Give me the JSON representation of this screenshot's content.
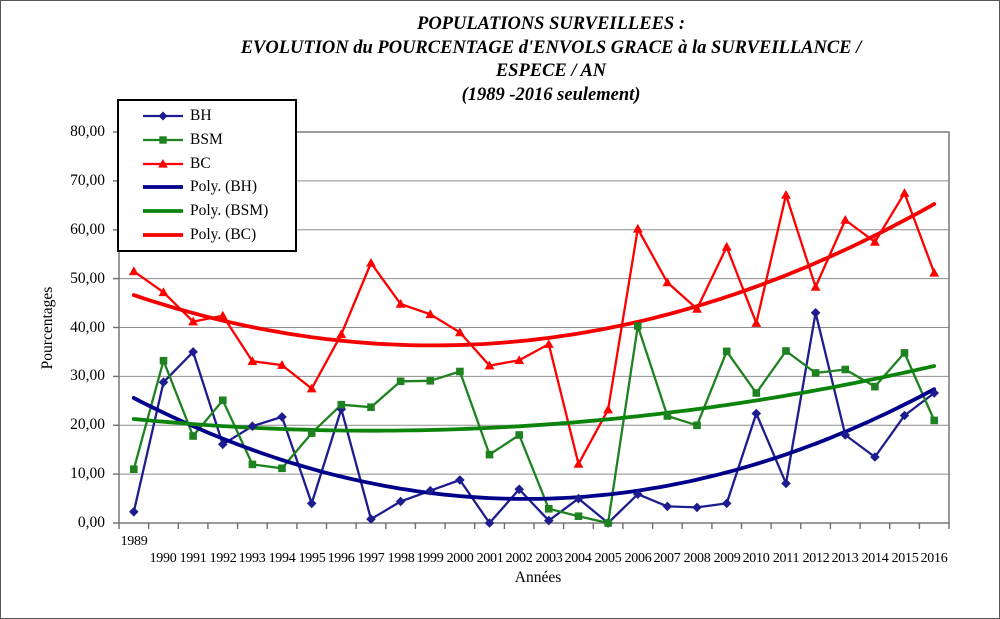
{
  "title": {
    "line1": "POPULATIONS SURVEILLEES :",
    "line2": "EVOLUTION du POURCENTAGE d'ENVOLS GRACE à la SURVEILLANCE /",
    "line3": "ESPECE / AN",
    "line4": "(1989 -2016 seulement)"
  },
  "axes": {
    "y_label": "Pourcentages",
    "x_label": "Années",
    "y_tick_labels": [
      "0,00",
      "10,00",
      "20,00",
      "30,00",
      "40,00",
      "50,00",
      "60,00",
      "70,00",
      "80,00"
    ],
    "x_tick_labels": [
      "1989",
      "1990",
      "1991",
      "1992",
      "1993",
      "1994",
      "1995",
      "1996",
      "1997",
      "1998",
      "1999",
      "2000",
      "2001",
      "2002",
      "2003",
      "2004",
      "2005",
      "2006",
      "2007",
      "2008",
      "2009",
      "2010",
      "2011",
      "2012",
      "2013",
      "2014",
      "2015",
      "2016"
    ]
  },
  "legend": {
    "items": [
      {
        "label": "BH",
        "kind": "data",
        "marker": "diamond",
        "color": "#1d1d8f"
      },
      {
        "label": "BSM",
        "kind": "data",
        "marker": "square",
        "color": "#1f8220"
      },
      {
        "label": "BC",
        "kind": "data",
        "marker": "triangle",
        "color": "#fe0000"
      },
      {
        "label": "Poly. (BH)",
        "kind": "trend",
        "marker": "none",
        "color": "#00008b"
      },
      {
        "label": "Poly. (BSM)",
        "kind": "trend",
        "marker": "none",
        "color": "#0c840c"
      },
      {
        "label": "Poly. (BC)",
        "kind": "trend",
        "marker": "none",
        "color": "#f40000"
      }
    ]
  },
  "chart_data": {
    "type": "line",
    "x": [
      1989,
      1990,
      1991,
      1992,
      1993,
      1994,
      1995,
      1996,
      1997,
      1998,
      1999,
      2000,
      2001,
      2002,
      2003,
      2004,
      2005,
      2006,
      2007,
      2008,
      2009,
      2010,
      2011,
      2012,
      2013,
      2014,
      2015,
      2016
    ],
    "series": [
      {
        "name": "BH",
        "color": "#1d1d8f",
        "marker": "diamond",
        "values": [
          2.3,
          28.8,
          35.0,
          16.1,
          19.8,
          21.7,
          4.0,
          23.3,
          0.8,
          4.4,
          6.6,
          8.8,
          0.0,
          6.9,
          0.5,
          5.0,
          0.0,
          5.9,
          3.4,
          3.2,
          4.0,
          22.4,
          8.1,
          43.0,
          18.0,
          13.5,
          22.0,
          26.6
        ]
      },
      {
        "name": "BSM",
        "color": "#1f8220",
        "marker": "square",
        "values": [
          11.0,
          33.2,
          17.8,
          25.1,
          12.0,
          11.2,
          18.4,
          24.2,
          23.7,
          29.0,
          29.1,
          31.0,
          14.0,
          18.0,
          2.9,
          1.4,
          0.0,
          40.3,
          21.9,
          20.0,
          35.1,
          26.6,
          35.2,
          30.7,
          31.4,
          27.9,
          34.8,
          21.0
        ]
      },
      {
        "name": "BC",
        "color": "#fe0000",
        "marker": "triangle",
        "values": [
          51.5,
          47.2,
          41.2,
          42.4,
          33.1,
          32.3,
          27.5,
          38.6,
          53.2,
          44.8,
          42.7,
          39.0,
          32.2,
          33.3,
          36.6,
          12.1,
          23.2,
          60.2,
          49.2,
          43.8,
          56.5,
          40.9,
          67.1,
          48.3,
          62.0,
          57.5,
          67.5,
          51.2
        ]
      }
    ],
    "trendlines": [
      {
        "name": "Poly. (BH)",
        "series": "BH",
        "type": "polynomial",
        "order": 2,
        "color": "#00008b"
      },
      {
        "name": "Poly. (BSM)",
        "series": "BSM",
        "type": "polynomial",
        "order": 2,
        "color": "#0c840c"
      },
      {
        "name": "Poly. (BC)",
        "series": "BC",
        "type": "polynomial",
        "order": 2,
        "color": "#f40000"
      }
    ],
    "title": "POPULATIONS SURVEILLEES : EVOLUTION du POURCENTAGE d'ENVOLS GRACE à la SURVEILLANCE / ESPECE / AN (1989 -2016 seulement)",
    "xlabel": "Années",
    "ylabel": "Pourcentages",
    "ylim": [
      0,
      80
    ],
    "grid": "horizontal",
    "legend_position": "inside-top-left"
  },
  "style": {
    "gridline_color": "#8e8e8e",
    "border_color": "#6f6f6f",
    "background": "#ffffff"
  }
}
